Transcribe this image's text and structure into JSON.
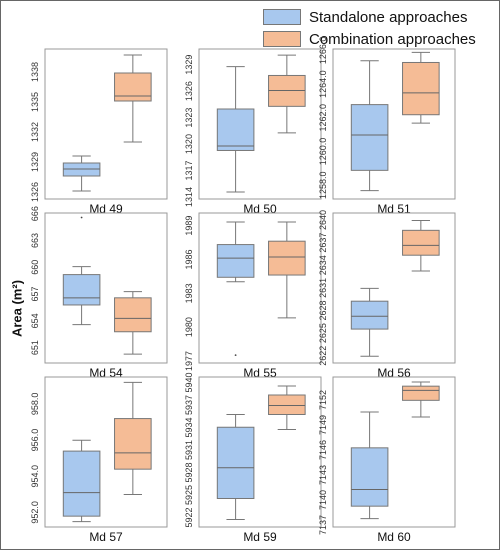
{
  "colors": {
    "standalone": "#a8c8ee",
    "combination": "#f5bc96",
    "box_stroke": "#777777",
    "frame": "#999999"
  },
  "legend": {
    "standalone": "Standalone approaches",
    "combination": "Combination approaches"
  },
  "ylabel": "Area (m²)",
  "chart_data": [
    {
      "type": "box",
      "title": "Md 49",
      "ylim": [
        1325.5,
        1340.5
      ],
      "yticks": [
        1326,
        1329,
        1332,
        1335,
        1338
      ],
      "ytick_labels": [
        "1326",
        "1329",
        "1332",
        "1335",
        "1338"
      ],
      "series": [
        {
          "name": "Standalone approaches",
          "whislo": 1326.3,
          "q1": 1327.8,
          "med": 1328.5,
          "q3": 1329.1,
          "whishi": 1329.8,
          "fliers": []
        },
        {
          "name": "Combination approaches",
          "whislo": 1331.2,
          "q1": 1335.3,
          "med": 1335.8,
          "q3": 1338.1,
          "whishi": 1339.9,
          "fliers": []
        }
      ]
    },
    {
      "type": "box",
      "title": "Md 50",
      "ylim": [
        1314,
        1331
      ],
      "yticks": [
        1314,
        1317,
        1320,
        1323,
        1326,
        1329
      ],
      "ytick_labels": [
        "1314",
        "1317",
        "1320",
        "1323",
        "1326",
        "1329"
      ],
      "series": [
        {
          "name": "Standalone approaches",
          "whislo": 1314.8,
          "q1": 1319.5,
          "med": 1320.0,
          "q3": 1324.2,
          "whishi": 1329.0,
          "fliers": []
        },
        {
          "name": "Combination approaches",
          "whislo": 1321.5,
          "q1": 1324.5,
          "med": 1326.3,
          "q3": 1328.0,
          "whishi": 1330.3,
          "fliers": []
        }
      ]
    },
    {
      "type": "box",
      "title": "Md 51",
      "ylim": [
        1257.3,
        1266.2
      ],
      "yticks": [
        1258,
        1260,
        1262,
        1264,
        1266
      ],
      "ytick_labels": [
        "1258.0",
        "1260.0",
        "1262.0",
        "1264.0",
        "1266.0"
      ],
      "series": [
        {
          "name": "Standalone approaches",
          "whislo": 1257.8,
          "q1": 1259.0,
          "med": 1261.1,
          "q3": 1262.9,
          "whishi": 1265.5,
          "fliers": []
        },
        {
          "name": "Combination approaches",
          "whislo": 1261.8,
          "q1": 1262.3,
          "med": 1263.6,
          "q3": 1265.4,
          "whishi": 1266.0,
          "fliers": []
        }
      ]
    },
    {
      "type": "box",
      "title": "Md 54",
      "ylim": [
        649.5,
        666.3
      ],
      "yticks": [
        651,
        654,
        657,
        660,
        663,
        666
      ],
      "ytick_labels": [
        "651",
        "654",
        "657",
        "660",
        "663",
        "666"
      ],
      "series": [
        {
          "name": "Standalone approaches",
          "whislo": 653.8,
          "q1": 656.0,
          "med": 656.8,
          "q3": 659.4,
          "whishi": 660.3,
          "fliers": [
            665.8
          ]
        },
        {
          "name": "Combination approaches",
          "whislo": 650.5,
          "q1": 653.0,
          "med": 654.5,
          "q3": 656.8,
          "whishi": 657.5,
          "fliers": []
        }
      ]
    },
    {
      "type": "box",
      "title": "Md 55",
      "ylim": [
        1977,
        1990.3
      ],
      "yticks": [
        1977,
        1980,
        1983,
        1986,
        1989
      ],
      "ytick_labels": [
        "1977",
        "1980",
        "1983",
        "1986",
        "1989"
      ],
      "series": [
        {
          "name": "Standalone approaches",
          "whislo": 1984.2,
          "q1": 1984.6,
          "med": 1986.3,
          "q3": 1987.5,
          "whishi": 1989.5,
          "fliers": [
            1977.7
          ]
        },
        {
          "name": "Combination approaches",
          "whislo": 1981.0,
          "q1": 1984.8,
          "med": 1986.4,
          "q3": 1987.8,
          "whishi": 1989.5,
          "fliers": []
        }
      ]
    },
    {
      "type": "box",
      "title": "Md 56",
      "ylim": [
        2621.3,
        2641.2
      ],
      "yticks": [
        2622,
        2625,
        2628,
        2631,
        2634,
        2637,
        2640
      ],
      "ytick_labels": [
        "2622",
        "2625",
        "2628",
        "2631",
        "2634",
        "2637",
        "2640"
      ],
      "series": [
        {
          "name": "Standalone approaches",
          "whislo": 2622.2,
          "q1": 2625.8,
          "med": 2627.5,
          "q3": 2629.5,
          "whishi": 2631.2,
          "fliers": []
        },
        {
          "name": "Combination approaches",
          "whislo": 2633.5,
          "q1": 2635.6,
          "med": 2636.9,
          "q3": 2638.9,
          "whishi": 2640.2,
          "fliers": []
        }
      ]
    },
    {
      "type": "box",
      "title": "Md 57",
      "ylim": [
        951.3,
        959.6
      ],
      "yticks": [
        952,
        954,
        956,
        958
      ],
      "ytick_labels": [
        "952.0",
        "954.0",
        "956.0",
        "958.0"
      ],
      "series": [
        {
          "name": "Standalone approaches",
          "whislo": 951.6,
          "q1": 951.9,
          "med": 953.2,
          "q3": 955.5,
          "whishi": 956.1,
          "fliers": []
        },
        {
          "name": "Combination approaches",
          "whislo": 953.1,
          "q1": 954.5,
          "med": 955.4,
          "q3": 957.3,
          "whishi": 959.3,
          "fliers": []
        }
      ]
    },
    {
      "type": "box",
      "title": "Md 59",
      "ylim": [
        5921,
        5941
      ],
      "yticks": [
        5922,
        5925,
        5928,
        5931,
        5934,
        5937,
        5940
      ],
      "ytick_labels": [
        "5922",
        "5925",
        "5928",
        "5931",
        "5934",
        "5937",
        "5940"
      ],
      "series": [
        {
          "name": "Standalone approaches",
          "whislo": 5922.0,
          "q1": 5924.8,
          "med": 5928.9,
          "q3": 5934.3,
          "whishi": 5936.0,
          "fliers": []
        },
        {
          "name": "Combination approaches",
          "whislo": 5934.0,
          "q1": 5936.0,
          "med": 5937.2,
          "q3": 5938.6,
          "whishi": 5939.8,
          "fliers": []
        }
      ]
    },
    {
      "type": "box",
      "title": "Md 60",
      "ylim": [
        7137,
        7155
      ],
      "yticks": [
        7137,
        7140,
        7143,
        7146,
        7149,
        7152
      ],
      "ytick_labels": [
        "7137",
        "7140",
        "7143",
        "7146",
        "7149",
        "7152"
      ],
      "series": [
        {
          "name": "Standalone approaches",
          "whislo": 7138.0,
          "q1": 7139.5,
          "med": 7141.5,
          "q3": 7146.5,
          "whishi": 7150.8,
          "fliers": []
        },
        {
          "name": "Combination approaches",
          "whislo": 7150.2,
          "q1": 7152.2,
          "med": 7153.4,
          "q3": 7153.9,
          "whishi": 7154.4,
          "fliers": []
        }
      ]
    }
  ]
}
